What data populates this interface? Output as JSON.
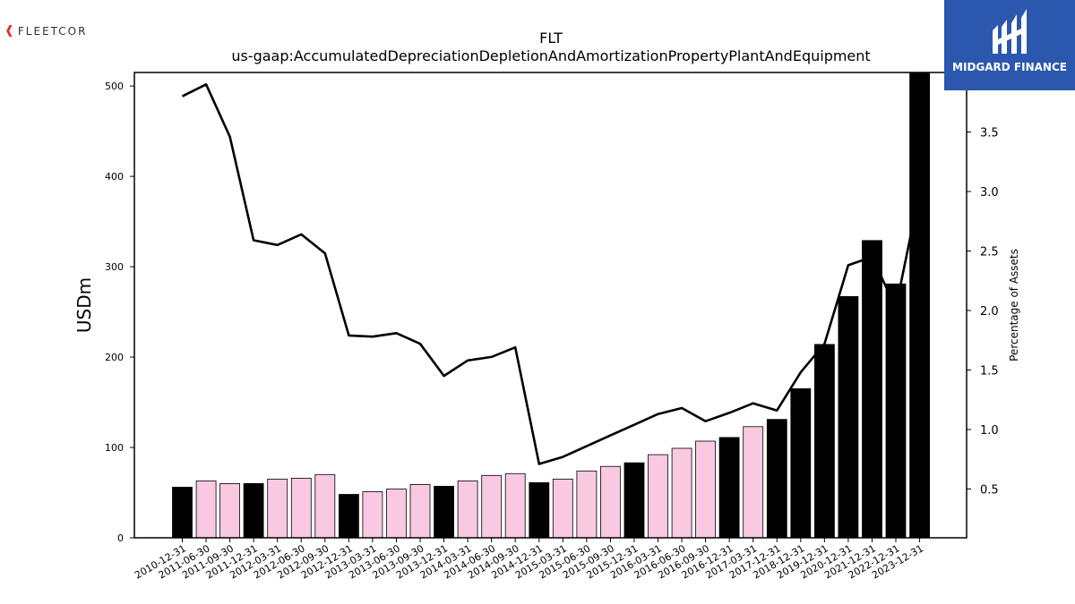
{
  "header": {
    "left_logo": {
      "icon": "fleetcor-chevron-icon",
      "text": "FLEETCOR",
      "accent": "#d9342b"
    },
    "right_logo": {
      "icon": "midgard-m-icon",
      "text": "MIDGARD FINANCE",
      "background": "#2b58ae"
    }
  },
  "chart_data": {
    "type": "bar",
    "title": "FLT",
    "subtitle": "us-gaap:AccumulatedDepreciationDepletionAndAmortizationPropertyPlantAndEquipment",
    "ylabel": "USDm",
    "y2label": "Percentage of Assets",
    "ylim": [
      0,
      515
    ],
    "y2lim": [
      0.09,
      4.0
    ],
    "yticks": [
      0,
      100,
      200,
      300,
      400,
      500
    ],
    "y2ticks": [
      0.5,
      1.0,
      1.5,
      2.0,
      2.5,
      3.0,
      3.5
    ],
    "y2tick_labels": [
      "0.5",
      "1.0",
      "1.5",
      "2.0",
      "2.5",
      "3.0",
      "3.5"
    ],
    "grid": false,
    "categories": [
      "2010-12-31",
      "2011-06-30",
      "2011-09-30",
      "2011-12-31",
      "2012-03-31",
      "2012-06-30",
      "2012-09-30",
      "2012-12-31",
      "2013-03-31",
      "2013-06-30",
      "2013-09-30",
      "2013-12-31",
      "2014-03-31",
      "2014-06-30",
      "2014-09-30",
      "2014-12-31",
      "2015-03-31",
      "2015-06-30",
      "2015-09-30",
      "2015-12-31",
      "2016-03-31",
      "2016-06-30",
      "2016-09-30",
      "2016-12-31",
      "2017-03-31",
      "2017-12-31",
      "2018-12-31",
      "2019-12-31",
      "2020-12-31",
      "2021-12-31",
      "2022-12-31",
      "2023-12-31"
    ],
    "values": [
      56,
      63,
      60,
      60,
      65,
      66,
      70,
      48,
      51,
      54,
      59,
      57,
      63,
      69,
      71,
      61,
      65,
      74,
      79,
      83,
      92,
      99,
      107,
      111,
      123,
      131,
      165,
      214,
      267,
      329,
      281,
      515
    ],
    "bar_colors": [
      "#000000",
      "#f9c9e1",
      "#f9c9e1",
      "#000000",
      "#f9c9e1",
      "#f9c9e1",
      "#f9c9e1",
      "#000000",
      "#f9c9e1",
      "#f9c9e1",
      "#f9c9e1",
      "#000000",
      "#f9c9e1",
      "#f9c9e1",
      "#f9c9e1",
      "#000000",
      "#f9c9e1",
      "#f9c9e1",
      "#f9c9e1",
      "#000000",
      "#f9c9e1",
      "#f9c9e1",
      "#f9c9e1",
      "#000000",
      "#f9c9e1",
      "#000000",
      "#000000",
      "#000000",
      "#000000",
      "#000000",
      "#000000",
      "#000000"
    ],
    "series": [
      {
        "values_y2": [
          3.8,
          3.9,
          3.46,
          2.59,
          2.55,
          2.64,
          2.48,
          1.79,
          1.78,
          1.81,
          1.72,
          1.45,
          1.58,
          1.61,
          1.69,
          0.71,
          0.77,
          0.86,
          0.95,
          1.04,
          1.13,
          1.18,
          1.07,
          1.14,
          1.22,
          1.16,
          1.48,
          1.72,
          2.38,
          2.45,
          2.02,
          3.0
        ]
      }
    ]
  }
}
